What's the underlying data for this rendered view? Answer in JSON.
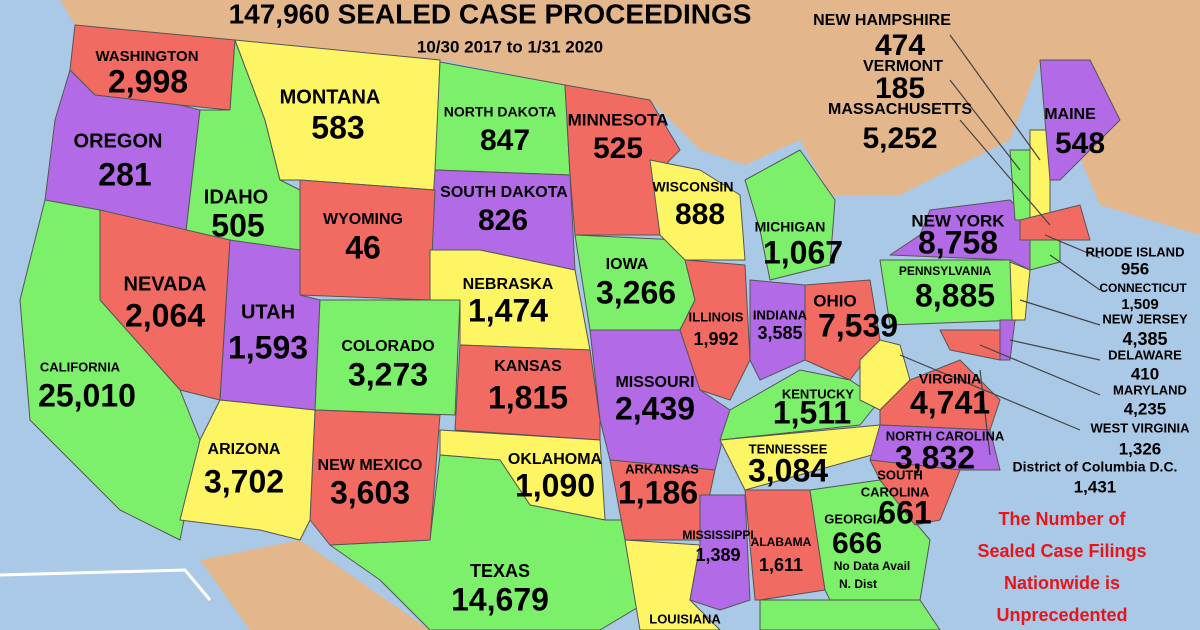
{
  "header": {
    "title": "147,960 SEALED CASE PROCEEDINGS",
    "subtitle": "10/30 2017 to 1/31 2020"
  },
  "states": [
    {
      "name": "WASHINGTON",
      "value": "2,998"
    },
    {
      "name": "OREGON",
      "value": "281"
    },
    {
      "name": "MONTANA",
      "value": "583"
    },
    {
      "name": "NORTH DAKOTA",
      "value": "847"
    },
    {
      "name": "MINNESOTA",
      "value": "525"
    },
    {
      "name": "IDAHO",
      "value": "505"
    },
    {
      "name": "WYOMING",
      "value": "46"
    },
    {
      "name": "SOUTH DAKOTA",
      "value": "826"
    },
    {
      "name": "WISCONSIN",
      "value": "888"
    },
    {
      "name": "MICHIGAN",
      "value": "1,067"
    },
    {
      "name": "NEW YORK",
      "value": "8,758"
    },
    {
      "name": "NEW HAMPSHIRE",
      "value": "474"
    },
    {
      "name": "VERMONT",
      "value": "185"
    },
    {
      "name": "MASSACHUSETTS",
      "value": "5,252"
    },
    {
      "name": "MAINE",
      "value": "548"
    },
    {
      "name": "NEVADA",
      "value": "2,064"
    },
    {
      "name": "UTAH",
      "value": "1,593"
    },
    {
      "name": "COLORADO",
      "value": "3,273"
    },
    {
      "name": "NEBRASKA",
      "value": "1,474"
    },
    {
      "name": "IOWA",
      "value": "3,266"
    },
    {
      "name": "ILLINOIS",
      "value": "1,992"
    },
    {
      "name": "INDIANA",
      "value": "3,585"
    },
    {
      "name": "OHIO",
      "value": "7,539"
    },
    {
      "name": "PENNSYLVANIA",
      "value": "8,885"
    },
    {
      "name": "RHODE ISLAND",
      "value": "956"
    },
    {
      "name": "CONNECTICUT",
      "value": "1,509"
    },
    {
      "name": "NEW JERSEY",
      "value": "4,385"
    },
    {
      "name": "DELAWARE",
      "value": "410"
    },
    {
      "name": "MARYLAND",
      "value": "4,235"
    },
    {
      "name": "WEST VIRGINIA",
      "value": "1,326"
    },
    {
      "name": "District of Columbia D.C.",
      "value": "1,431"
    },
    {
      "name": "CALIFORNIA",
      "value": "25,010"
    },
    {
      "name": "KANSAS",
      "value": "1,815"
    },
    {
      "name": "MISSOURI",
      "value": "2,439"
    },
    {
      "name": "KENTUCKY",
      "value": "1,511"
    },
    {
      "name": "VIRGINIA",
      "value": "4,741"
    },
    {
      "name": "ARIZONA",
      "value": "3,702"
    },
    {
      "name": "NEW MEXICO",
      "value": "3,603"
    },
    {
      "name": "OKLAHOMA",
      "value": "1,090"
    },
    {
      "name": "ARKANSAS",
      "value": "1,186"
    },
    {
      "name": "TENNESSEE",
      "value": "3,084"
    },
    {
      "name": "NORTH CAROLINA",
      "value": "3,832"
    },
    {
      "name_lines": [
        "SOUTH",
        "CAROLINA"
      ],
      "value": "661"
    },
    {
      "name": "MISSISSIPPI",
      "value": "1,389"
    },
    {
      "name": "ALABAMA",
      "value": "1,611"
    },
    {
      "name": "GEORGIA",
      "value": "666",
      "notes": [
        "No Data Avail",
        "N. Dist"
      ]
    },
    {
      "name": "TEXAS",
      "value": "14,679"
    },
    {
      "name": "LOUISIANA"
    }
  ],
  "note": {
    "lines": [
      "The Number of",
      "Sealed Case Filings",
      "Nationwide is",
      "Unprecedented"
    ]
  }
}
